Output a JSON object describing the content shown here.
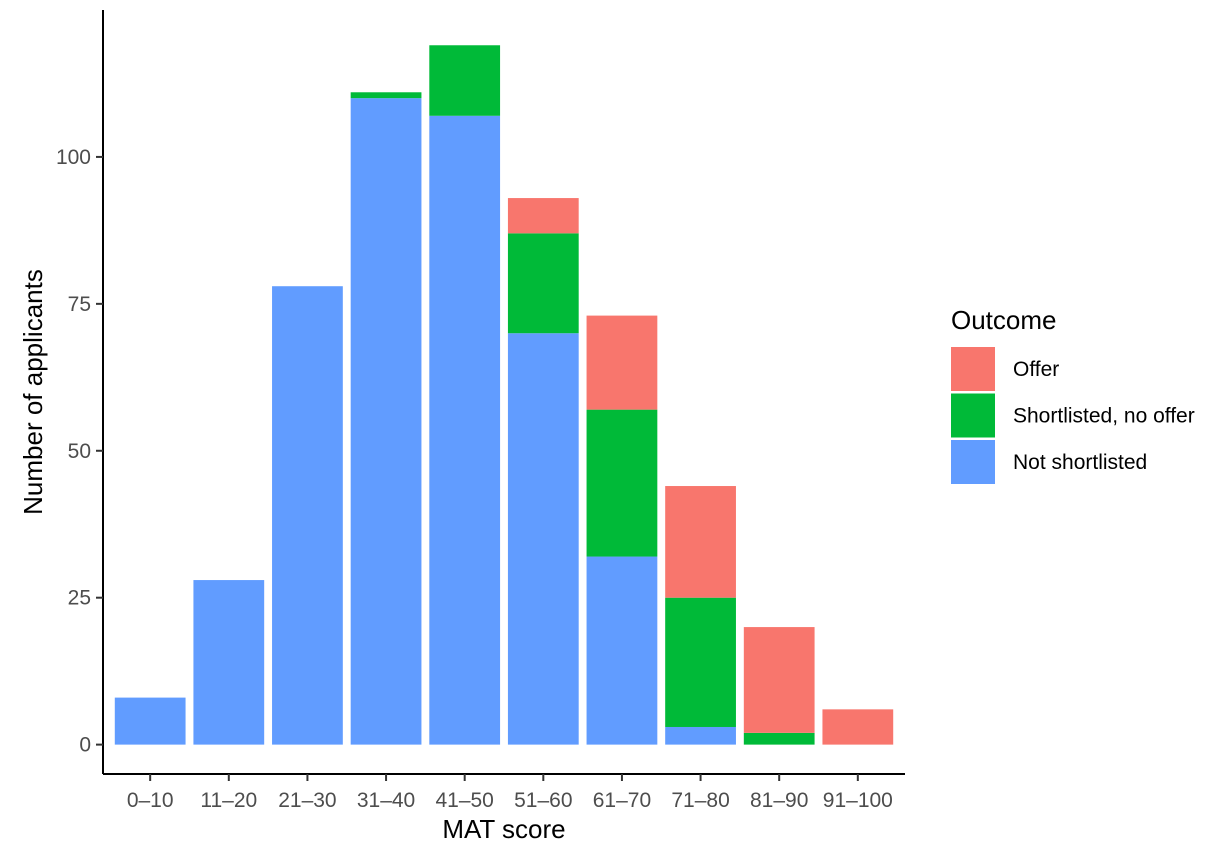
{
  "chart_data": {
    "type": "bar",
    "stacked": true,
    "title": "",
    "xlabel": "MAT score",
    "ylabel": "Number of applicants",
    "categories": [
      "0–10",
      "11–20",
      "21–30",
      "31–40",
      "41–50",
      "51–60",
      "61–70",
      "71–80",
      "81–90",
      "91–100"
    ],
    "series": [
      {
        "name": "Not shortlisted",
        "color": "#619CFF",
        "values": [
          8,
          28,
          78,
          110,
          107,
          70,
          32,
          3,
          0,
          0
        ]
      },
      {
        "name": "Shortlisted, no offer",
        "color": "#00BA38",
        "values": [
          0,
          0,
          0,
          1,
          12,
          17,
          25,
          22,
          2,
          0
        ]
      },
      {
        "name": "Offer",
        "color": "#F8766D",
        "values": [
          0,
          0,
          0,
          0,
          0,
          6,
          16,
          19,
          18,
          6
        ]
      }
    ],
    "yticks": [
      0,
      25,
      50,
      75,
      100
    ],
    "ylim": [
      -5,
      125
    ],
    "grid": false,
    "legend": {
      "title": "Outcome",
      "placement": "right",
      "order": [
        "Offer",
        "Shortlisted, no offer",
        "Not shortlisted"
      ]
    }
  }
}
